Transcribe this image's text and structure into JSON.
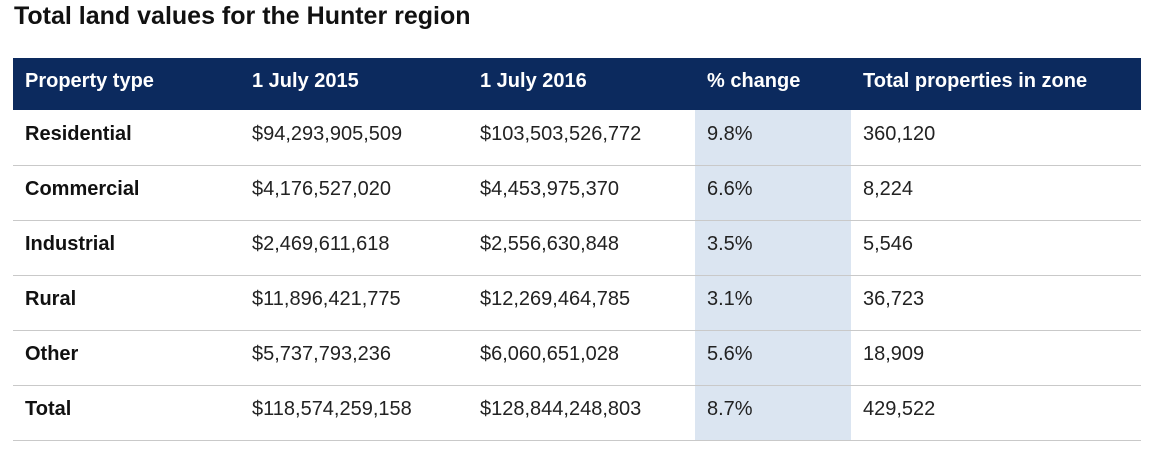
{
  "title": "Total land values for the Hunter region",
  "table": {
    "headers": [
      "Property type",
      "1 July 2015",
      "1 July 2016",
      "% change",
      "Total properties in zone"
    ],
    "rows": [
      [
        "Residential",
        "$94,293,905,509",
        "$103,503,526,772",
        "9.8%",
        "360,120"
      ],
      [
        "Commercial",
        "$4,176,527,020",
        "$4,453,975,370",
        "6.6%",
        "8,224"
      ],
      [
        "Industrial",
        "$2,469,611,618",
        "$2,556,630,848",
        "3.5%",
        "5,546"
      ],
      [
        "Rural",
        "$11,896,421,775",
        "$12,269,464,785",
        "3.1%",
        "36,723"
      ],
      [
        "Other",
        "$5,737,793,236",
        "$6,060,651,028",
        "5.6%",
        "18,909"
      ],
      [
        "Total",
        "$118,574,259,158",
        "$128,844,248,803",
        "8.7%",
        "429,522"
      ]
    ]
  },
  "colors": {
    "header_bg": "#0c2a5e",
    "header_text": "#ffffff",
    "highlight_column": "#dbe5f1",
    "row_divider": "#c9c9c9"
  }
}
